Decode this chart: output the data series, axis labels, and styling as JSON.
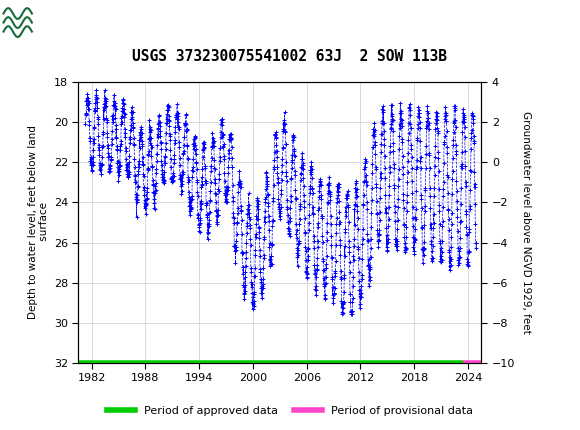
{
  "title": "USGS 373230075541002 63J  2 SOW 113B",
  "ylabel_left": "Depth to water level, feet below land\n surface",
  "ylabel_right": "Groundwater level above NGVD 1929, feet",
  "ylim_left": [
    32,
    18
  ],
  "ylim_right": [
    -10,
    4
  ],
  "yticks_left": [
    18,
    20,
    22,
    24,
    26,
    28,
    30,
    32
  ],
  "yticks_right": [
    4,
    2,
    0,
    -2,
    -4,
    -6,
    -8,
    -10
  ],
  "xticks": [
    1982,
    1988,
    1994,
    2000,
    2006,
    2012,
    2018,
    2024
  ],
  "xlim": [
    1980.5,
    2025.5
  ],
  "header_color": "#1a6b3c",
  "data_color": "#0000ff",
  "approved_color": "#00cc00",
  "provisional_color": "#ff44cc",
  "legend_approved": "Period of approved data",
  "legend_provisional": "Period of provisional data",
  "background_color": "#ffffff",
  "grid_color": "#cccccc",
  "provisional_xstart": 2023.5,
  "provisional_xend": 2025.5,
  "bar_y_left": 32
}
